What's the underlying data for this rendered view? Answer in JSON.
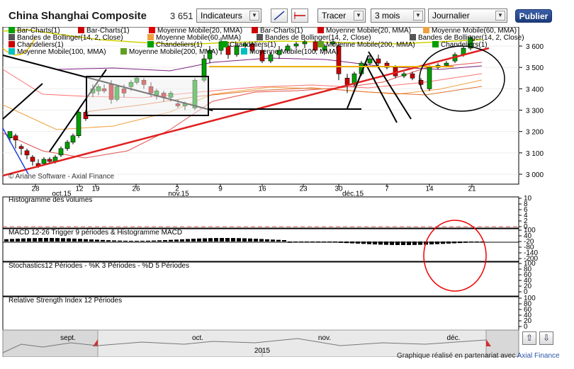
{
  "header": {
    "title": "China Shanghai Composite",
    "last_price": "3 651",
    "indicators_label": "Indicateurs",
    "tracer_label": "Tracer",
    "period_label": "3 mois",
    "interval_label": "Journalier",
    "publish_label": "Publier"
  },
  "legend": [
    {
      "label": "Bar-Charts(1)",
      "color": "#00a000"
    },
    {
      "label": "Bar-Charts(1)",
      "color": "#cc0000"
    },
    {
      "label": "Moyenne Mobile(20, MMA)",
      "color": "#e00000"
    },
    {
      "label": "Bar-Charts(1)",
      "color": "#cc0000"
    },
    {
      "label": "Moyenne Mobile(20, MMA)",
      "color": "#cc0000"
    },
    {
      "label": "Moyenne Mobile(60, MMA)",
      "color": "#f0a040"
    },
    {
      "label": "Bandes de Bollinger(14, 2, Close)",
      "color": "#555555"
    },
    {
      "label": "Moyenne Mobile(60, MMA)",
      "color": "#f0a040"
    },
    {
      "label": "Bandes de Bollinger(14, 2, Close)",
      "color": "#555555"
    },
    {
      "label": "Bandes de Bollinger(14, 2, Close)",
      "color": "#555555"
    },
    {
      "label": "Chandeliers(1)",
      "color": "#cc0000"
    },
    {
      "label": "Chandeliers(1)",
      "color": "#00a000"
    },
    {
      "label": "Chandeliers(1)",
      "color": "#00a000"
    },
    {
      "label": "Moyenne Mobile(200, MMA)",
      "color": "#60a020"
    },
    {
      "label": "Chandeliers(1)",
      "color": "#00a000"
    },
    {
      "label": "Moyenne Mobile(100, MMA)",
      "color": "#00c0c0"
    },
    {
      "label": "Moyenne Mobile(200, MMA)",
      "color": "#60a020"
    },
    {
      "label": "Moyenne Mobile(100, MMA)",
      "color": "#00c0c0"
    }
  ],
  "main_axis": {
    "y_ticks": [
      "3 600",
      "3 500",
      "3 400",
      "3 300",
      "3 200",
      "3 100",
      "3 000"
    ],
    "x_days": [
      "28",
      "12",
      "19",
      "26",
      "2",
      "9",
      "16",
      "23",
      "30",
      "7",
      "14",
      "21"
    ],
    "x_months": [
      "oct.15",
      "nov.15",
      "déc.15"
    ],
    "copyright": "© Ariane Software - Axial Finance"
  },
  "panels": {
    "volume_label": "Histogramme des volumes",
    "volume_ticks": [
      "10",
      "8",
      "6",
      "4",
      "2",
      "0"
    ],
    "macd_label": "MACD 12-26  Trigger 9 périodes & Histogramme MACD",
    "macd_ticks": [
      "100",
      "40",
      "-20",
      "-80",
      "-140",
      "-200"
    ],
    "stoch_label": "Stochastics12 Périodes  -  %K 3 Périodes  -  %D 5 Périodes",
    "stoch_ticks": [
      "100",
      "80",
      "60",
      "40",
      "20",
      "0"
    ],
    "rsi_label": "Relative Strength Index 12 Périodes",
    "rsi_ticks": [
      "100",
      "80",
      "60",
      "40",
      "20",
      "0"
    ]
  },
  "navigator": {
    "months": [
      "sept.",
      "oct.",
      "nov.",
      "déc."
    ],
    "year": "2015"
  },
  "footer": {
    "text": "Graphique réalisé en partenariat avec",
    "link": "Axial Finance"
  },
  "colors": {
    "up": "#00a000",
    "down": "#cc0000",
    "accent": "#1d3b7a"
  }
}
